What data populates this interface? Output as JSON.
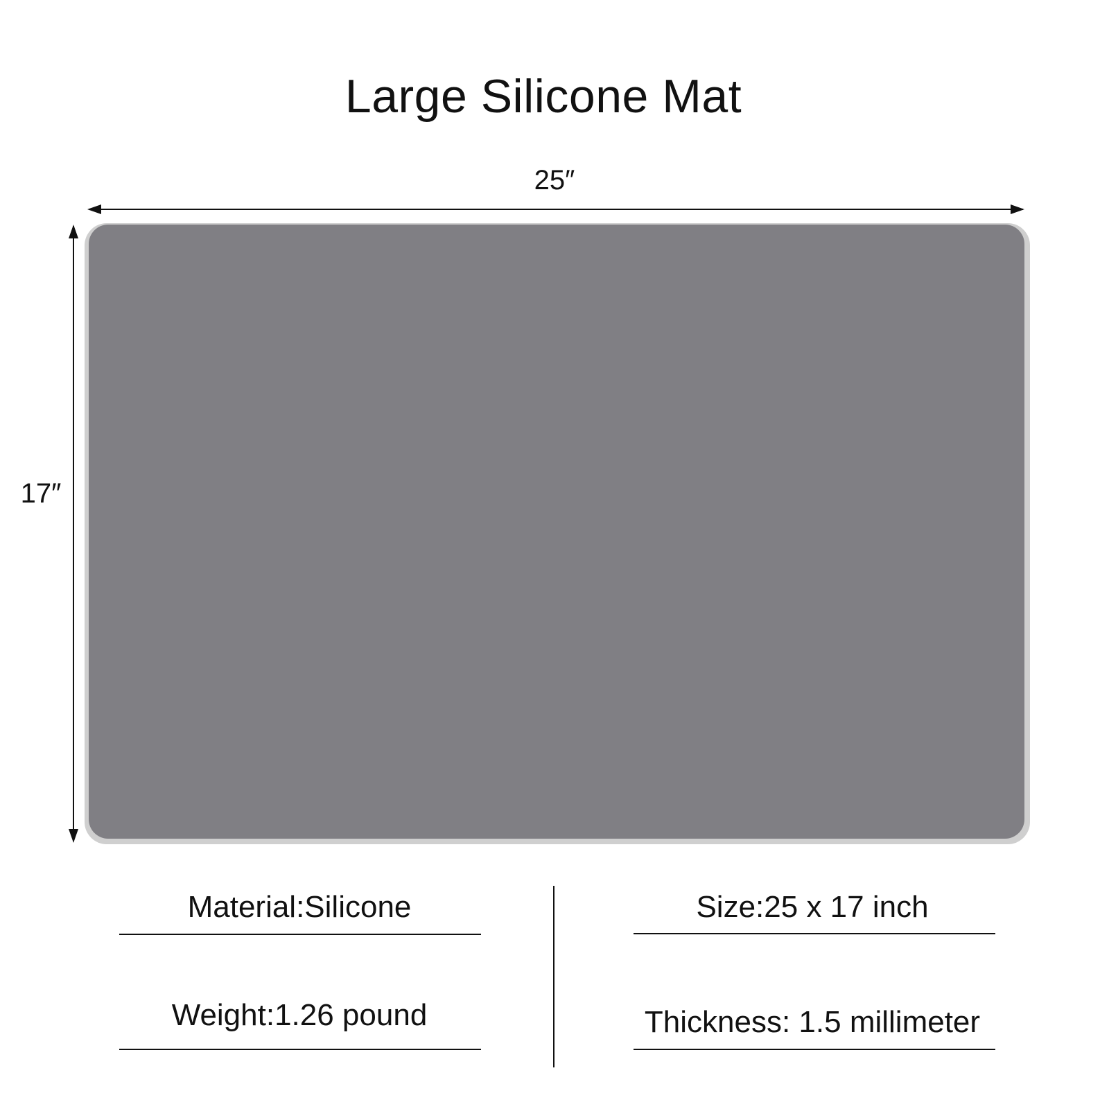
{
  "title": "Large Silicone Mat",
  "dimensions": {
    "width_label": "25″",
    "height_label": "17″"
  },
  "mat": {
    "color": "#807f84"
  },
  "specs": {
    "material": "Material:Silicone",
    "size": "Size:25 x 17 inch",
    "weight": "Weight:1.26 pound",
    "thickness": "Thickness:  1.5 millimeter"
  }
}
